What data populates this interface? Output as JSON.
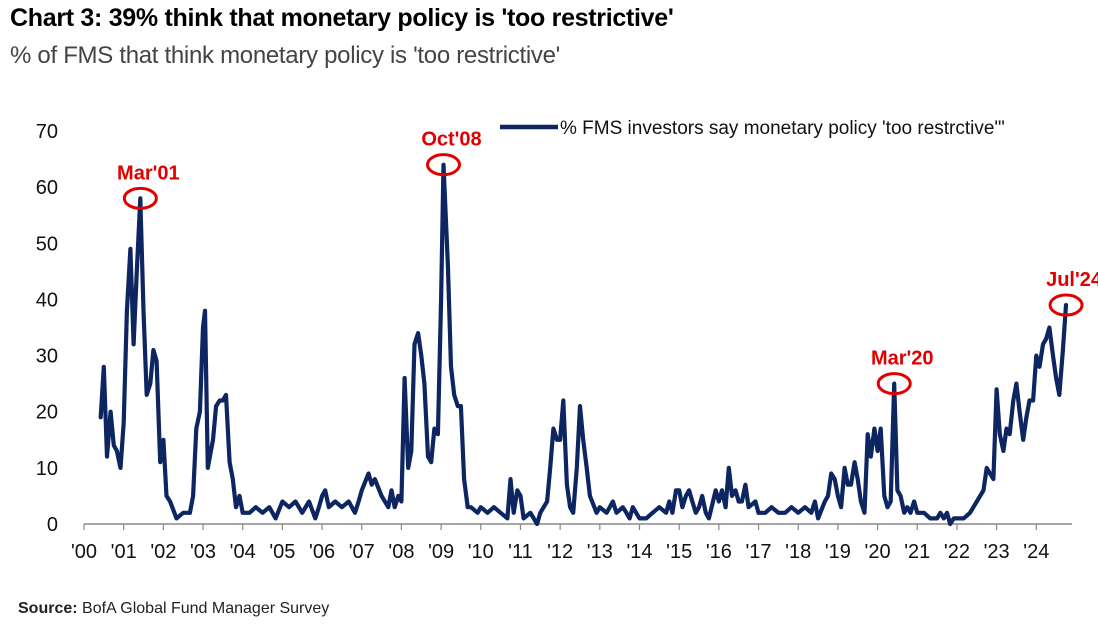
{
  "chart_data": {
    "type": "line",
    "title": "Chart 3: 39% think that monetary policy is 'too restrictive'",
    "subtitle": "% of FMS that think monetary policy is 'too restrictive'",
    "source_label": "Source:",
    "source_text": "BofA Global Fund Manager Survey",
    "ylim": [
      0,
      70
    ],
    "yticks": [
      "0",
      "10",
      "20",
      "30",
      "40",
      "50",
      "60",
      "70"
    ],
    "xticks": [
      "'00",
      "'01",
      "'02",
      "'03",
      "'04",
      "'05",
      "'06",
      "'07",
      "'08",
      "'09",
      "'10",
      "'11",
      "'12",
      "'13",
      "'14",
      "'15",
      "'16",
      "'17",
      "'18",
      "'19",
      "'20",
      "'21",
      "'22",
      "'23",
      "'24"
    ],
    "xlim": [
      2000,
      2024.9
    ],
    "series": [
      {
        "name": "% FMS investors say monetary policy 'too restrctive'\"",
        "color": "#0d2561",
        "points": [
          [
            2000.42,
            19
          ],
          [
            2000.5,
            28
          ],
          [
            2000.58,
            12
          ],
          [
            2000.67,
            20
          ],
          [
            2000.75,
            14
          ],
          [
            2000.83,
            13
          ],
          [
            2000.92,
            10
          ],
          [
            2001.0,
            18
          ],
          [
            2001.08,
            38
          ],
          [
            2001.17,
            49
          ],
          [
            2001.25,
            32
          ],
          [
            2001.33,
            45
          ],
          [
            2001.42,
            58
          ],
          [
            2001.5,
            38
          ],
          [
            2001.58,
            23
          ],
          [
            2001.67,
            25
          ],
          [
            2001.75,
            31
          ],
          [
            2001.83,
            29
          ],
          [
            2001.92,
            11
          ],
          [
            2002.0,
            15
          ],
          [
            2002.08,
            5
          ],
          [
            2002.17,
            4
          ],
          [
            2002.33,
            1
          ],
          [
            2002.5,
            2
          ],
          [
            2002.67,
            2
          ],
          [
            2002.75,
            5
          ],
          [
            2002.83,
            17
          ],
          [
            2002.92,
            20
          ],
          [
            2003.0,
            35
          ],
          [
            2003.05,
            38
          ],
          [
            2003.12,
            10
          ],
          [
            2003.25,
            15
          ],
          [
            2003.33,
            21
          ],
          [
            2003.42,
            22
          ],
          [
            2003.5,
            22
          ],
          [
            2003.58,
            23
          ],
          [
            2003.67,
            11
          ],
          [
            2003.75,
            8
          ],
          [
            2003.83,
            3
          ],
          [
            2003.92,
            5
          ],
          [
            2004.0,
            2
          ],
          [
            2004.17,
            2
          ],
          [
            2004.33,
            3
          ],
          [
            2004.5,
            2
          ],
          [
            2004.67,
            3
          ],
          [
            2004.83,
            1
          ],
          [
            2005.0,
            4
          ],
          [
            2005.17,
            3
          ],
          [
            2005.33,
            4
          ],
          [
            2005.5,
            2
          ],
          [
            2005.67,
            4
          ],
          [
            2005.83,
            1
          ],
          [
            2005.92,
            3
          ],
          [
            2006.0,
            5
          ],
          [
            2006.08,
            6
          ],
          [
            2006.17,
            3
          ],
          [
            2006.33,
            4
          ],
          [
            2006.5,
            3
          ],
          [
            2006.67,
            4
          ],
          [
            2006.83,
            2
          ],
          [
            2006.92,
            4
          ],
          [
            2007.0,
            6
          ],
          [
            2007.17,
            9
          ],
          [
            2007.25,
            7
          ],
          [
            2007.33,
            8
          ],
          [
            2007.5,
            5
          ],
          [
            2007.67,
            3
          ],
          [
            2007.75,
            6
          ],
          [
            2007.83,
            3
          ],
          [
            2007.92,
            5
          ],
          [
            2008.0,
            4
          ],
          [
            2008.08,
            26
          ],
          [
            2008.17,
            10
          ],
          [
            2008.25,
            13
          ],
          [
            2008.33,
            32
          ],
          [
            2008.42,
            34
          ],
          [
            2008.5,
            30
          ],
          [
            2008.58,
            25
          ],
          [
            2008.67,
            12
          ],
          [
            2008.75,
            11
          ],
          [
            2008.83,
            17
          ],
          [
            2008.92,
            16
          ],
          [
            2009.0,
            40
          ],
          [
            2009.06,
            64
          ],
          [
            2009.17,
            46
          ],
          [
            2009.25,
            28
          ],
          [
            2009.33,
            23
          ],
          [
            2009.42,
            21
          ],
          [
            2009.5,
            21
          ],
          [
            2009.58,
            8
          ],
          [
            2009.67,
            3
          ],
          [
            2009.75,
            3
          ],
          [
            2009.92,
            2
          ],
          [
            2010.0,
            3
          ],
          [
            2010.17,
            2
          ],
          [
            2010.33,
            3
          ],
          [
            2010.5,
            2
          ],
          [
            2010.67,
            1
          ],
          [
            2010.75,
            8
          ],
          [
            2010.83,
            2
          ],
          [
            2010.92,
            6
          ],
          [
            2011.0,
            5
          ],
          [
            2011.08,
            1
          ],
          [
            2011.25,
            2
          ],
          [
            2011.42,
            0
          ],
          [
            2011.5,
            2
          ],
          [
            2011.67,
            4
          ],
          [
            2011.75,
            10
          ],
          [
            2011.83,
            17
          ],
          [
            2011.92,
            15
          ],
          [
            2012.0,
            15
          ],
          [
            2012.08,
            22
          ],
          [
            2012.17,
            7
          ],
          [
            2012.25,
            3
          ],
          [
            2012.33,
            2
          ],
          [
            2012.42,
            10
          ],
          [
            2012.5,
            21
          ],
          [
            2012.58,
            15
          ],
          [
            2012.67,
            10
          ],
          [
            2012.75,
            5
          ],
          [
            2012.92,
            2
          ],
          [
            2013.0,
            3
          ],
          [
            2013.17,
            2
          ],
          [
            2013.33,
            4
          ],
          [
            2013.42,
            2
          ],
          [
            2013.58,
            3
          ],
          [
            2013.67,
            2
          ],
          [
            2013.75,
            1
          ],
          [
            2013.83,
            3
          ],
          [
            2014.0,
            1
          ],
          [
            2014.17,
            1
          ],
          [
            2014.33,
            2
          ],
          [
            2014.5,
            3
          ],
          [
            2014.67,
            2
          ],
          [
            2014.75,
            4
          ],
          [
            2014.83,
            2
          ],
          [
            2014.92,
            6
          ],
          [
            2015.0,
            6
          ],
          [
            2015.08,
            3
          ],
          [
            2015.17,
            5
          ],
          [
            2015.25,
            6
          ],
          [
            2015.33,
            4
          ],
          [
            2015.42,
            2
          ],
          [
            2015.5,
            3
          ],
          [
            2015.58,
            5
          ],
          [
            2015.67,
            2
          ],
          [
            2015.75,
            1
          ],
          [
            2015.92,
            6
          ],
          [
            2016.0,
            4
          ],
          [
            2016.08,
            6
          ],
          [
            2016.17,
            3
          ],
          [
            2016.25,
            10
          ],
          [
            2016.33,
            5
          ],
          [
            2016.42,
            6
          ],
          [
            2016.5,
            4
          ],
          [
            2016.58,
            4
          ],
          [
            2016.67,
            7
          ],
          [
            2016.75,
            3
          ],
          [
            2016.92,
            4
          ],
          [
            2017.0,
            2
          ],
          [
            2017.17,
            2
          ],
          [
            2017.33,
            3
          ],
          [
            2017.5,
            2
          ],
          [
            2017.67,
            2
          ],
          [
            2017.83,
            3
          ],
          [
            2018.0,
            2
          ],
          [
            2018.17,
            3
          ],
          [
            2018.33,
            2
          ],
          [
            2018.42,
            4
          ],
          [
            2018.5,
            1
          ],
          [
            2018.67,
            4
          ],
          [
            2018.75,
            5
          ],
          [
            2018.83,
            9
          ],
          [
            2018.92,
            8
          ],
          [
            2019.0,
            5
          ],
          [
            2019.08,
            3
          ],
          [
            2019.17,
            10
          ],
          [
            2019.25,
            7
          ],
          [
            2019.33,
            7
          ],
          [
            2019.42,
            11
          ],
          [
            2019.5,
            8
          ],
          [
            2019.58,
            4
          ],
          [
            2019.67,
            2
          ],
          [
            2019.75,
            16
          ],
          [
            2019.83,
            12
          ],
          [
            2019.92,
            17
          ],
          [
            2020.0,
            13
          ],
          [
            2020.08,
            17
          ],
          [
            2020.17,
            5
          ],
          [
            2020.25,
            3
          ],
          [
            2020.33,
            4
          ],
          [
            2020.42,
            25
          ],
          [
            2020.5,
            6
          ],
          [
            2020.58,
            5
          ],
          [
            2020.67,
            2
          ],
          [
            2020.75,
            3
          ],
          [
            2020.83,
            2
          ],
          [
            2020.92,
            4
          ],
          [
            2021.0,
            2
          ],
          [
            2021.17,
            2
          ],
          [
            2021.33,
            1
          ],
          [
            2021.5,
            1
          ],
          [
            2021.58,
            2
          ],
          [
            2021.67,
            1
          ],
          [
            2021.75,
            2
          ],
          [
            2021.83,
            0
          ],
          [
            2021.92,
            1
          ],
          [
            2022.0,
            1
          ],
          [
            2022.17,
            1
          ],
          [
            2022.33,
            2
          ],
          [
            2022.5,
            4
          ],
          [
            2022.67,
            6
          ],
          [
            2022.75,
            10
          ],
          [
            2022.92,
            8
          ],
          [
            2023.0,
            24
          ],
          [
            2023.08,
            16
          ],
          [
            2023.17,
            13
          ],
          [
            2023.25,
            17
          ],
          [
            2023.33,
            16
          ],
          [
            2023.42,
            22
          ],
          [
            2023.5,
            25
          ],
          [
            2023.58,
            20
          ],
          [
            2023.67,
            15
          ],
          [
            2023.75,
            19
          ],
          [
            2023.83,
            22
          ],
          [
            2023.92,
            22
          ],
          [
            2024.0,
            30
          ],
          [
            2024.08,
            28
          ],
          [
            2024.17,
            32
          ],
          [
            2024.25,
            33
          ],
          [
            2024.33,
            35
          ],
          [
            2024.42,
            30
          ],
          [
            2024.5,
            26
          ],
          [
            2024.58,
            23
          ],
          [
            2024.67,
            31
          ],
          [
            2024.75,
            39
          ]
        ]
      }
    ],
    "annotations": [
      {
        "label": "Mar'01",
        "x": 2001.42,
        "y": 58
      },
      {
        "label": "Oct'08",
        "x": 2009.06,
        "y": 64
      },
      {
        "label": "Mar'20",
        "x": 2020.42,
        "y": 25
      },
      {
        "label": "Jul'24",
        "x": 2024.75,
        "y": 39
      }
    ]
  }
}
